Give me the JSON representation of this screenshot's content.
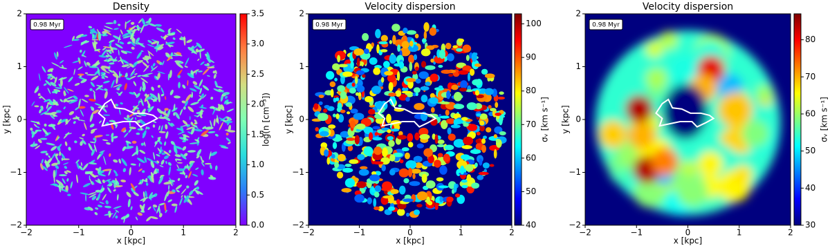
{
  "chart_data": [
    {
      "type": "heatmap",
      "title": "Density",
      "annotation": "0.98 Myr",
      "xlabel": "x [kpc]",
      "ylabel": "y [kpc]",
      "xlim": [
        -2,
        2
      ],
      "ylim": [
        -2,
        2
      ],
      "xticks": [
        {
          "value": -2,
          "label": "−2"
        },
        {
          "value": -1,
          "label": "−1"
        },
        0,
        1,
        2
      ],
      "yticks": [
        {
          "value": -2,
          "label": "−2"
        },
        {
          "value": -1,
          "label": "−1"
        },
        0,
        1,
        2
      ],
      "colorbar_label": "log(n [cm⁻³])",
      "clim": [
        0,
        3.5
      ],
      "cticks": [
        {
          "value": 0,
          "label": "0.0"
        },
        0.5,
        {
          "value": 1,
          "label": "1.0"
        },
        1.5,
        {
          "value": 2,
          "label": "2.0"
        },
        2.5,
        {
          "value": 3,
          "label": "3.0"
        },
        3.5
      ],
      "colorscale": [
        "#8000ff",
        "#2c7ef7",
        "#2adddd",
        "#80ffb4",
        "#d4dd80",
        "#ff7e41",
        "#ff0000"
      ]
    },
    {
      "type": "heatmap",
      "title": "Velocity dispersion",
      "annotation": "0.98 Myr",
      "xlabel": "x [kpc]",
      "ylabel": "y [kpc]",
      "xlim": [
        -2,
        2
      ],
      "ylim": [
        -2,
        2
      ],
      "xticks": [
        {
          "value": -2,
          "label": "−2"
        },
        {
          "value": -1,
          "label": "−1"
        },
        0,
        1,
        2
      ],
      "yticks": [
        {
          "value": -2,
          "label": "−2"
        },
        {
          "value": -1,
          "label": "−1"
        },
        0,
        1,
        2
      ],
      "colorbar_label": "σᵥ [km s⁻¹]",
      "clim": [
        40,
        103
      ],
      "cticks": [
        40,
        50,
        60,
        70,
        80,
        90,
        100
      ],
      "colorscale": [
        "#00007f",
        "#0000ff",
        "#007fff",
        "#00ffff",
        "#7fff7f",
        "#ffff00",
        "#ff7f00",
        "#ff0000",
        "#7f0000"
      ]
    },
    {
      "type": "heatmap",
      "title": "Velocity dispersion",
      "annotation": "0.98 Myr",
      "xlabel": "x [kpc]",
      "ylabel": "y [kpc]",
      "xlim": [
        -2,
        2
      ],
      "ylim": [
        -2,
        2
      ],
      "xticks": [
        {
          "value": -2,
          "label": "−2"
        },
        {
          "value": -1,
          "label": "−1"
        },
        0,
        1,
        2
      ],
      "yticks": [
        {
          "value": -2,
          "label": "−2"
        },
        {
          "value": -1,
          "label": "−1"
        },
        0,
        1,
        2
      ],
      "colorbar_label": "σᵥ [km s⁻¹]",
      "clim": [
        30,
        87
      ],
      "cticks": [
        30,
        40,
        50,
        60,
        70,
        80
      ],
      "colorscale": [
        "#00007f",
        "#0000ff",
        "#007fff",
        "#00ffff",
        "#7fff7f",
        "#ffff00",
        "#ff7f00",
        "#ff0000",
        "#7f0000"
      ]
    }
  ]
}
